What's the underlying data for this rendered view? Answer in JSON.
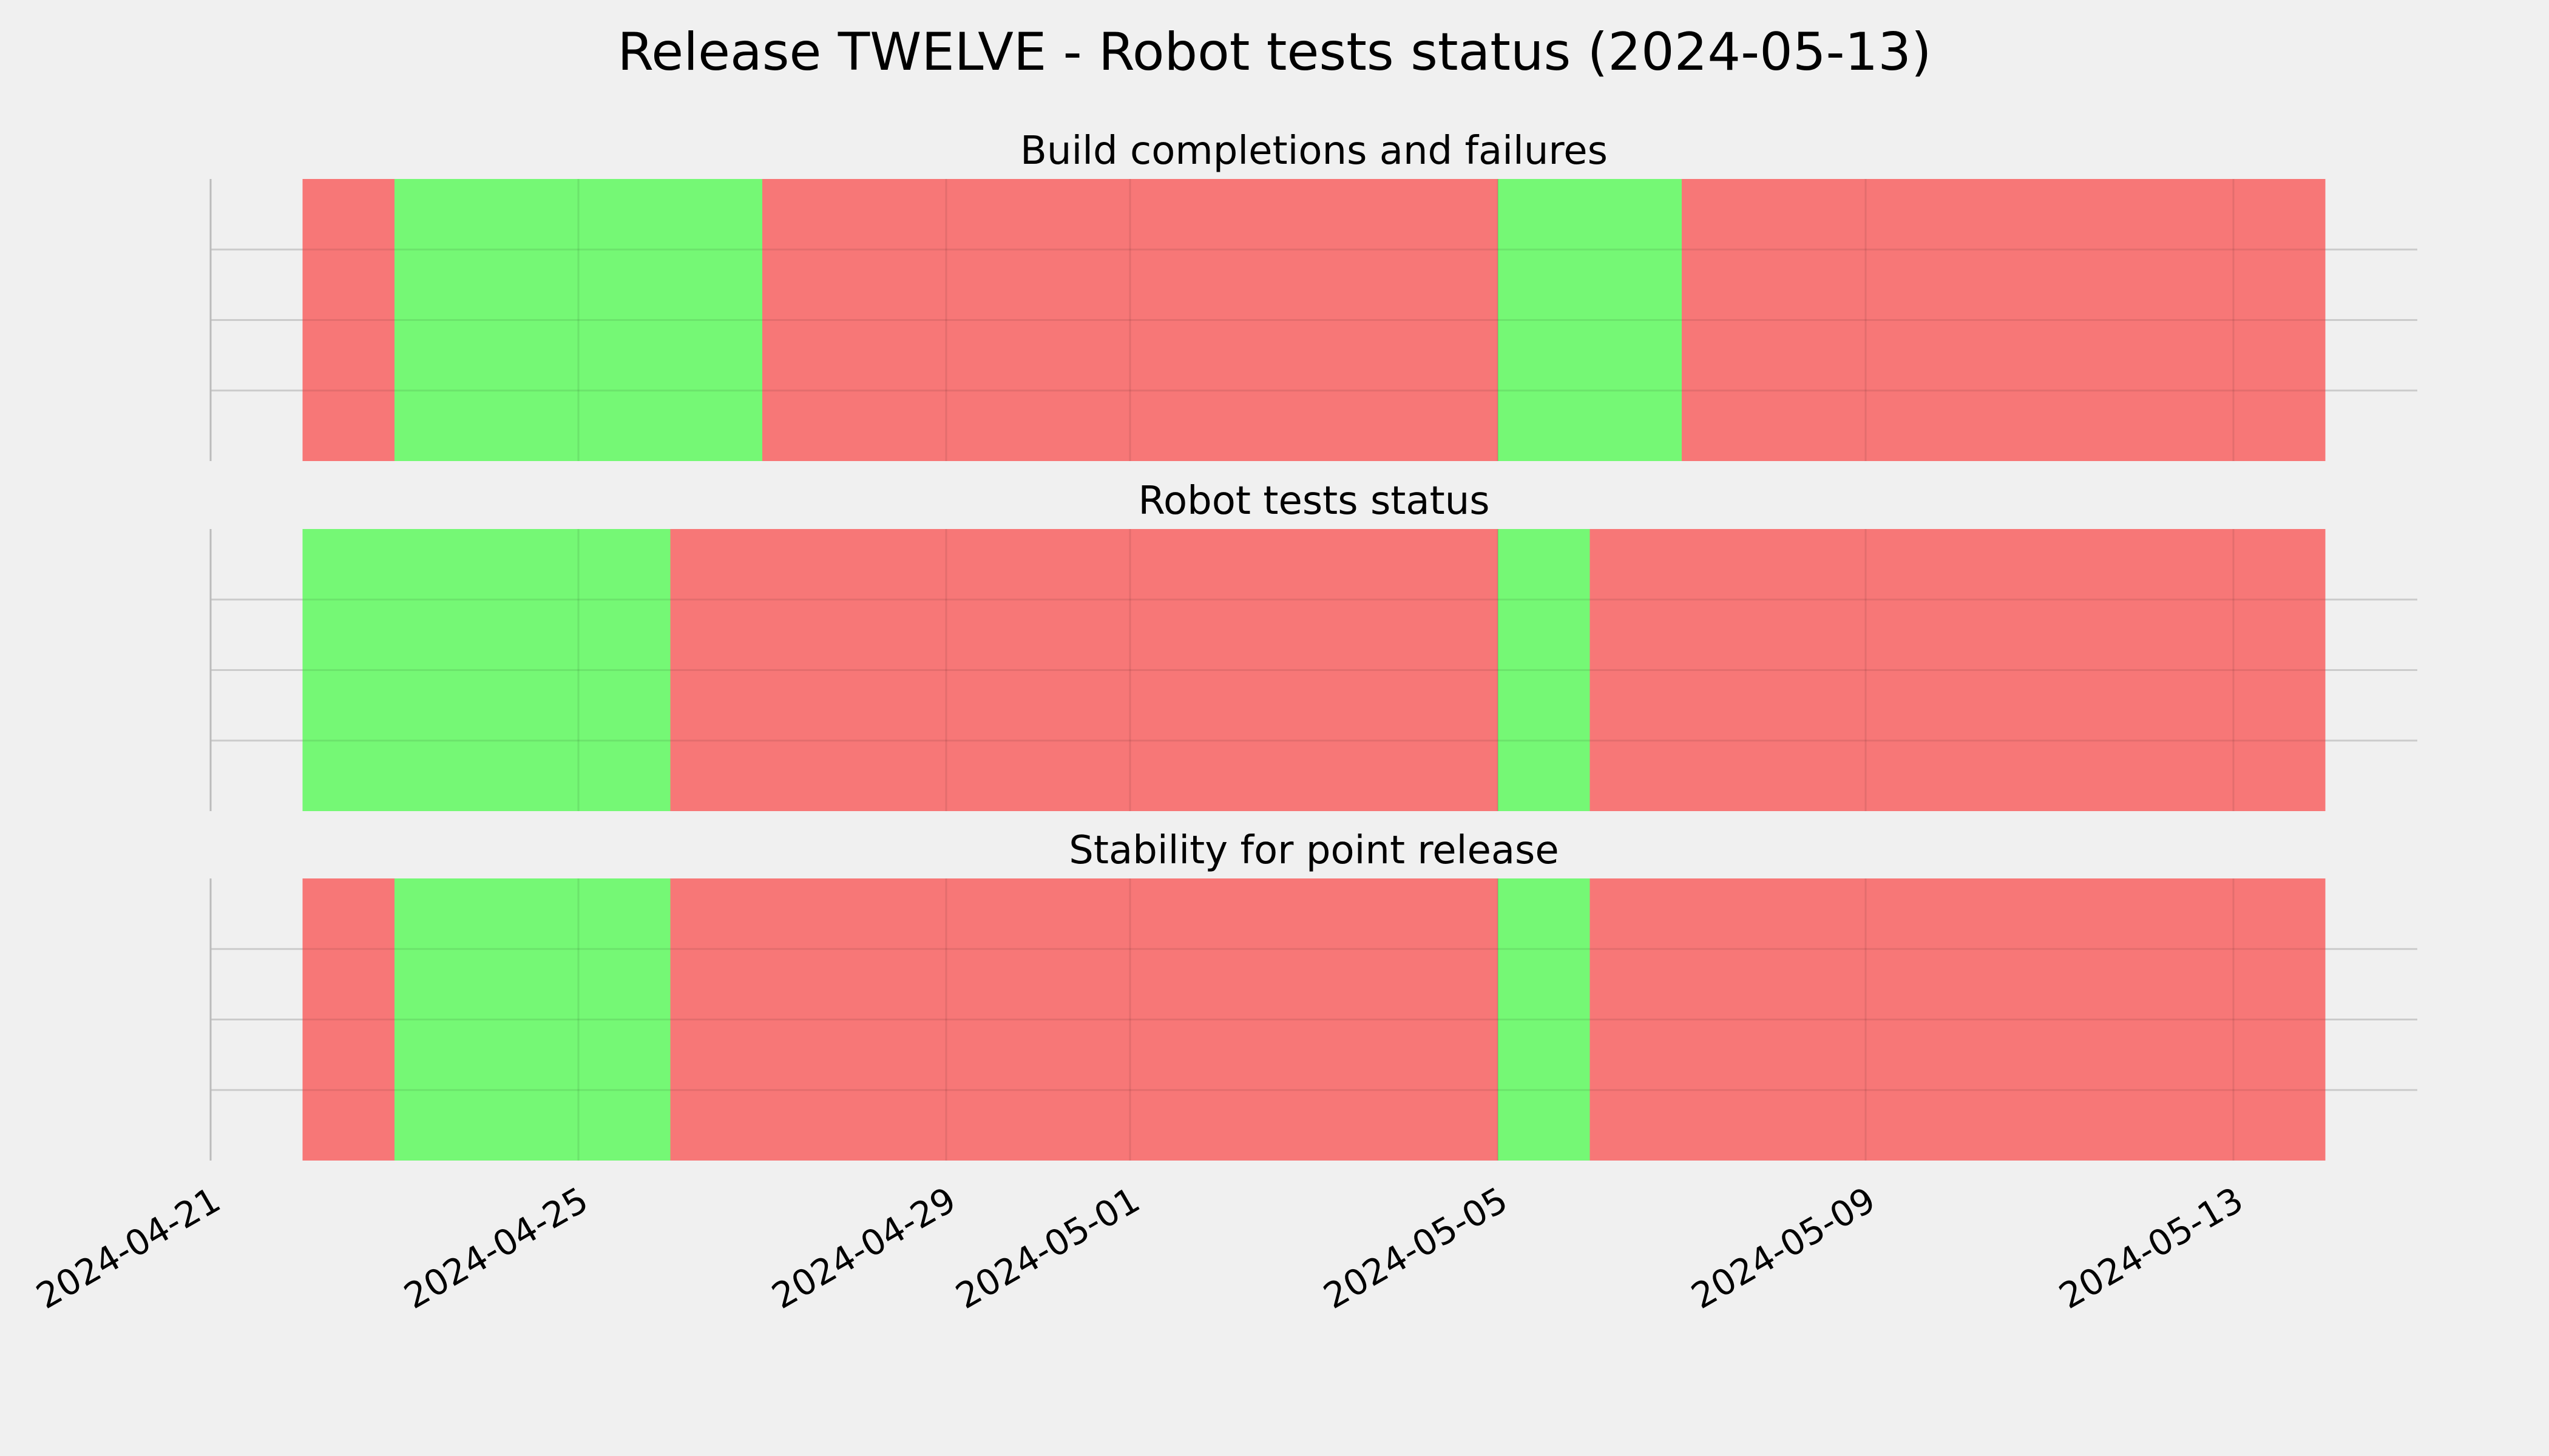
{
  "title": "Release TWELVE - Robot tests status (2024-05-13)",
  "colors": {
    "pass": "#75f875",
    "fail": "#f77777",
    "background": "#f0f0f0",
    "grid": "#cbcbcb"
  },
  "chart_data": {
    "type": "timeline",
    "x_axis": {
      "type": "date",
      "range": [
        "2024-04-21",
        "2024-05-15"
      ],
      "ticks": [
        "2024-04-21",
        "2024-04-25",
        "2024-04-29",
        "2024-05-01",
        "2024-05-05",
        "2024-05-09",
        "2024-05-13"
      ]
    },
    "grid": true,
    "panels": [
      {
        "title": "Build completions and failures",
        "segments": [
          {
            "start": "2024-04-22",
            "end": "2024-04-23",
            "status": "fail"
          },
          {
            "start": "2024-04-23",
            "end": "2024-04-27",
            "status": "pass"
          },
          {
            "start": "2024-04-27",
            "end": "2024-05-05",
            "status": "fail"
          },
          {
            "start": "2024-05-05",
            "end": "2024-05-07",
            "status": "pass"
          },
          {
            "start": "2024-05-07",
            "end": "2024-05-14",
            "status": "fail"
          }
        ]
      },
      {
        "title": "Robot tests status",
        "segments": [
          {
            "start": "2024-04-22",
            "end": "2024-04-26",
            "status": "pass"
          },
          {
            "start": "2024-04-26",
            "end": "2024-05-05",
            "status": "fail"
          },
          {
            "start": "2024-05-05",
            "end": "2024-05-06",
            "status": "pass"
          },
          {
            "start": "2024-05-06",
            "end": "2024-05-14",
            "status": "fail"
          }
        ]
      },
      {
        "title": "Stability for point release",
        "segments": [
          {
            "start": "2024-04-22",
            "end": "2024-04-23",
            "status": "fail"
          },
          {
            "start": "2024-04-23",
            "end": "2024-04-26",
            "status": "pass"
          },
          {
            "start": "2024-04-26",
            "end": "2024-05-05",
            "status": "fail"
          },
          {
            "start": "2024-05-05",
            "end": "2024-05-06",
            "status": "pass"
          },
          {
            "start": "2024-05-06",
            "end": "2024-05-14",
            "status": "fail"
          }
        ]
      }
    ]
  }
}
